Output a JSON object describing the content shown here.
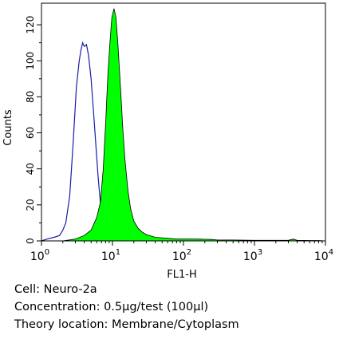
{
  "chart_data": {
    "type": "area",
    "xlabel": "FL1-H",
    "ylabel": "Counts",
    "x_scale": "log",
    "xlim": [
      1,
      10000
    ],
    "ylim": [
      0,
      128
    ],
    "grid": false,
    "x_ticks": [
      {
        "value": 1,
        "base": "10",
        "exp": "0"
      },
      {
        "value": 10,
        "base": "10",
        "exp": "1"
      },
      {
        "value": 100,
        "base": "10",
        "exp": "2"
      },
      {
        "value": 1000,
        "base": "10",
        "exp": "3"
      },
      {
        "value": 10000,
        "base": "10",
        "exp": "4"
      }
    ],
    "y_ticks": [
      0,
      20,
      40,
      60,
      80,
      100,
      120
    ],
    "series": [
      {
        "role": "isotype-control",
        "style": "outline",
        "color": "#1c1ca8",
        "points": [
          [
            1,
            0
          ],
          [
            1.2,
            1
          ],
          [
            1.5,
            2
          ],
          [
            1.8,
            3
          ],
          [
            2,
            6
          ],
          [
            2.2,
            10
          ],
          [
            2.5,
            25
          ],
          [
            2.8,
            55
          ],
          [
            3.1,
            85
          ],
          [
            3.4,
            100
          ],
          [
            3.6,
            106
          ],
          [
            3.8,
            110
          ],
          [
            4,
            108
          ],
          [
            4.3,
            109
          ],
          [
            4.6,
            103
          ],
          [
            5,
            90
          ],
          [
            5.4,
            72
          ],
          [
            5.8,
            55
          ],
          [
            6.3,
            35
          ],
          [
            6.8,
            20
          ],
          [
            7.3,
            12
          ],
          [
            8,
            6
          ],
          [
            9,
            3
          ],
          [
            10,
            1.5
          ],
          [
            12,
            0.5
          ],
          [
            15,
            0
          ]
        ]
      },
      {
        "role": "antibody-stained",
        "style": "filled",
        "color": "#00ff00",
        "points": [
          [
            2,
            0
          ],
          [
            3,
            1
          ],
          [
            4,
            3
          ],
          [
            5,
            6
          ],
          [
            6,
            13
          ],
          [
            6.8,
            22
          ],
          [
            7.4,
            40
          ],
          [
            8,
            65
          ],
          [
            8.6,
            92
          ],
          [
            9.2,
            110
          ],
          [
            9.8,
            124
          ],
          [
            10.5,
            129
          ],
          [
            11.2,
            124
          ],
          [
            12,
            108
          ],
          [
            13,
            85
          ],
          [
            14,
            62
          ],
          [
            15,
            45
          ],
          [
            16.5,
            28
          ],
          [
            18,
            18
          ],
          [
            20,
            11
          ],
          [
            23,
            7
          ],
          [
            26,
            5
          ],
          [
            30,
            3.5
          ],
          [
            40,
            2
          ],
          [
            60,
            1.5
          ],
          [
            80,
            1
          ],
          [
            100,
            1
          ],
          [
            150,
            1
          ],
          [
            250,
            0.8
          ],
          [
            300,
            0.5
          ],
          [
            500,
            0.5
          ],
          [
            1000,
            0.3
          ],
          [
            3000,
            0.3
          ],
          [
            3500,
            1
          ],
          [
            4000,
            0.3
          ],
          [
            6000,
            0.2
          ],
          [
            8000,
            0.2
          ],
          [
            10000,
            0
          ]
        ]
      }
    ]
  },
  "captions": {
    "cell": "Cell: Neuro-2a",
    "concentration": "Concentration: 0.5µg/test (100µl)",
    "location": "Theory location: Membrane/Cytoplasm"
  }
}
